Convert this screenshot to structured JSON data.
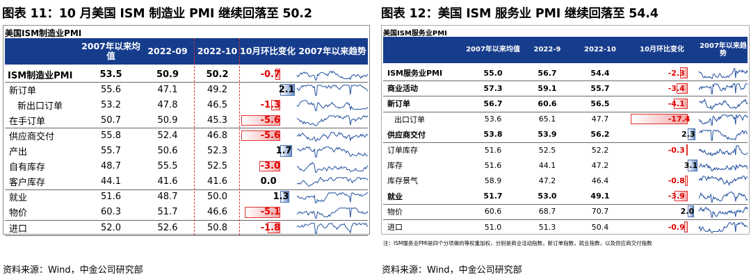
{
  "left": {
    "title": "图表 11：10 月美国 ISM 制造业 PMI 继续回落至 50.2",
    "subtitle": "美国ISM制造业PMI",
    "headers": [
      "",
      "2007年以来均值",
      "2022-09",
      "2022-10",
      "10月环比变化",
      "2007年以来趋势"
    ],
    "rows": [
      {
        "label": "ISM制造业PMI",
        "bold": true,
        "avg": "53.5",
        "prev": "50.9",
        "cur": "50.2",
        "chg": "-0.7",
        "chg_val": -0.7
      },
      {
        "label": "新订单",
        "avg": "55.6",
        "prev": "47.1",
        "cur": "49.2",
        "chg": "2.1",
        "chg_val": 2.1
      },
      {
        "label": "新出口订单",
        "indent": true,
        "avg": "53.2",
        "prev": "47.8",
        "cur": "46.5",
        "chg": "-1.3",
        "chg_val": -1.3
      },
      {
        "label": "在手订单",
        "avg": "50.7",
        "prev": "50.9",
        "cur": "45.3",
        "chg": "-5.6",
        "chg_val": -5.6
      },
      {
        "label": "供应商交付",
        "avg": "55.8",
        "prev": "52.4",
        "cur": "46.8",
        "chg": "-5.6",
        "chg_val": -5.6
      },
      {
        "label": "产出",
        "avg": "55.7",
        "prev": "50.6",
        "cur": "52.3",
        "chg": "1.7",
        "chg_val": 1.7
      },
      {
        "label": "自有库存",
        "avg": "48.7",
        "prev": "55.5",
        "cur": "52.5",
        "chg": "-3.0",
        "chg_val": -3.0
      },
      {
        "label": "客户库存",
        "avg": "44.1",
        "prev": "41.6",
        "cur": "41.6",
        "chg": "0.0",
        "chg_val": 0.0
      },
      {
        "label": "就业",
        "avg": "51.6",
        "prev": "48.7",
        "cur": "50.0",
        "chg": "1.3",
        "chg_val": 1.3
      },
      {
        "label": "物价",
        "avg": "60.3",
        "prev": "51.7",
        "cur": "46.6",
        "chg": "-5.1",
        "chg_val": -5.1
      },
      {
        "label": "进口",
        "avg": "52.0",
        "prev": "52.6",
        "cur": "50.8",
        "chg": "-1.8",
        "chg_val": -1.8
      }
    ],
    "source": "资料来源：Wind，中金公司研究部"
  },
  "right": {
    "title": "图表 12：美国 ISM 服务业 PMI 继续回落至 54.4",
    "subtitle": "美国ISM服务业PMI",
    "headers": [
      "",
      "2007年以来均值",
      "2022-9",
      "2022-10",
      "10月环比变化",
      "2007年以来趋势"
    ],
    "rows": [
      {
        "label": "ISM服务业PMI",
        "bold": true,
        "avg": "55.0",
        "prev": "56.7",
        "cur": "54.4",
        "chg": "-2.3",
        "chg_val": -2.3
      },
      {
        "label": "商业活动",
        "bold": true,
        "avg": "57.3",
        "prev": "59.1",
        "cur": "55.7",
        "chg": "-3.4",
        "chg_val": -3.4
      },
      {
        "label": "新订单",
        "bold": true,
        "avg": "56.7",
        "prev": "60.6",
        "cur": "56.5",
        "chg": "-4.1",
        "chg_val": -4.1
      },
      {
        "label": "出口订单",
        "indent": true,
        "avg": "53.6",
        "prev": "65.1",
        "cur": "47.7",
        "chg": "-17.4",
        "chg_val": -17.4
      },
      {
        "label": "供应商交付",
        "bold": true,
        "avg": "53.8",
        "prev": "53.9",
        "cur": "56.2",
        "chg": "2.3",
        "chg_val": 2.3
      },
      {
        "label": "订单库存",
        "avg": "51.6",
        "prev": "52.5",
        "cur": "52.2",
        "chg": "-0.3",
        "chg_val": -0.3
      },
      {
        "label": "库存",
        "avg": "51.6",
        "prev": "44.1",
        "cur": "47.2",
        "chg": "3.1",
        "chg_val": 3.1
      },
      {
        "label": "库存景气",
        "avg": "58.9",
        "prev": "47.2",
        "cur": "46.4",
        "chg": "-0.8",
        "chg_val": -0.8
      },
      {
        "label": "就业",
        "bold": true,
        "avg": "51.7",
        "prev": "53.0",
        "cur": "49.1",
        "chg": "-3.9",
        "chg_val": -3.9
      },
      {
        "label": "物价",
        "avg": "60.6",
        "prev": "68.7",
        "cur": "70.7",
        "chg": "2.0",
        "chg_val": 2.0
      },
      {
        "label": "进口",
        "avg": "51.0",
        "prev": "51.3",
        "cur": "50.4",
        "chg": "-0.9",
        "chg_val": -0.9
      }
    ],
    "note": "注：ISM服务业PMI是四个分项做的等权重加权，分别是商业活动指数，新订单指数，就业指数，以及供应商交付指数",
    "source": "资料来源：Wind，中金公司研究部"
  },
  "colors": {
    "header_bg": "#163c8c",
    "neg_text": "#e00000",
    "neg_bar": "#e03030",
    "pos_bar": "#6c90c8"
  }
}
